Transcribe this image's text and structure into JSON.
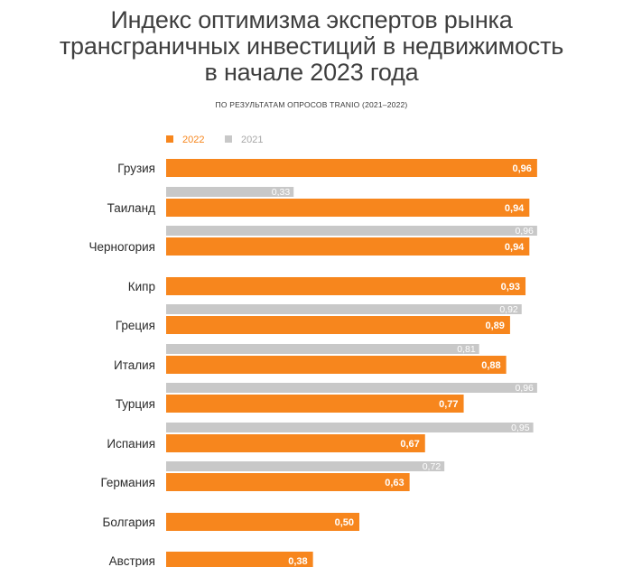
{
  "title_lines": [
    "Индекс оптимизма экспертов рынка",
    "трансграничных инвестиций в недвижимость",
    "в начале 2023 года"
  ],
  "subtitle": "ПО РЕЗУЛЬТАТАМ ОПРОСОВ TRANIO (2021–2022)",
  "colors": {
    "s2022": "#f7861d",
    "s2021": "#c8c8c8"
  },
  "chart_data": {
    "type": "bar",
    "orientation": "horizontal",
    "title": "Индекс оптимизма экспертов рынка трансграничных инвестиций в недвижимость в начале 2023 года",
    "subtitle": "ПО РЕЗУЛЬТАТАМ ОПРОСОВ TRANIO (2021–2022)",
    "legend_position": "top-left",
    "categories": [
      "Грузия",
      "Таиланд",
      "Черногория",
      "Кипр",
      "Греция",
      "Италия",
      "Турция",
      "Испания",
      "Германия",
      "Болгария",
      "Австрия"
    ],
    "series": [
      {
        "name": "2022",
        "values": [
          0.96,
          0.94,
          0.94,
          0.93,
          0.89,
          0.88,
          0.77,
          0.67,
          0.63,
          0.5,
          0.38
        ]
      },
      {
        "name": "2021",
        "values": [
          null,
          0.33,
          0.96,
          null,
          0.92,
          0.81,
          0.96,
          0.95,
          0.72,
          null,
          null
        ]
      }
    ],
    "value_labels": {
      "2022": [
        "0,96",
        "0,94",
        "0,94",
        "0,93",
        "0,89",
        "0,88",
        "0,77",
        "0,67",
        "0,63",
        "0,50",
        "0,38"
      ],
      "2021": [
        "",
        "0,33",
        "0,96",
        "",
        "0,92",
        "0,81",
        "0,96",
        "0,95",
        "0,72",
        "",
        ""
      ]
    },
    "xlim": [
      0,
      1
    ],
    "grid": false
  }
}
